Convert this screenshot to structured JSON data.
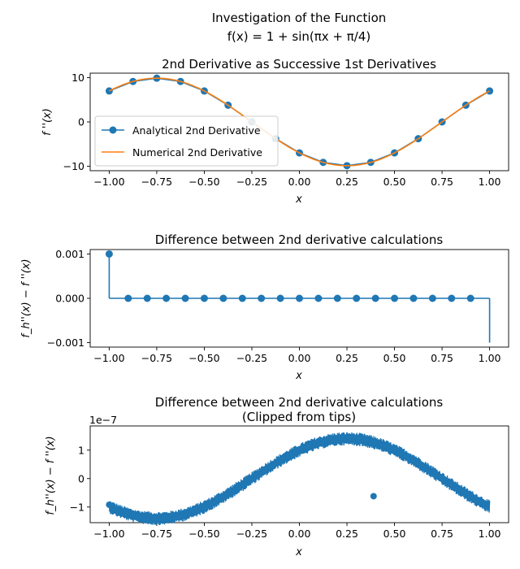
{
  "figure": {
    "suptitle_line1": "Investigation of the Function",
    "suptitle_line2": "f(x) = 1 + sin(πx + π/4)"
  },
  "colors": {
    "blue": "#1f77b4",
    "orange": "#ff7f0e"
  },
  "chart_data": [
    {
      "type": "line",
      "title": "2nd Derivative as Successive 1st Derivatives",
      "xlabel": "x",
      "ylabel": "f ''(x)",
      "xlim": [
        -1.1,
        1.1
      ],
      "ylim": [
        -11,
        11
      ],
      "xticks": [
        -1.0,
        -0.75,
        -0.5,
        -0.25,
        0.0,
        0.25,
        0.5,
        0.75,
        1.0
      ],
      "xtick_labels": [
        "−1.00",
        "−0.75",
        "−0.50",
        "−0.25",
        "0.00",
        "0.25",
        "0.50",
        "0.75",
        "1.00"
      ],
      "yticks": [
        -10,
        0,
        10
      ],
      "ytick_labels": [
        "−10",
        "0",
        "10"
      ],
      "legend_position": "center-left",
      "series": [
        {
          "name": "Analytical 2nd Derivative",
          "style": "line-markers",
          "x": [
            -1.0,
            -0.875,
            -0.75,
            -0.625,
            -0.5,
            -0.375,
            -0.25,
            -0.125,
            0.0,
            0.125,
            0.25,
            0.375,
            0.5,
            0.625,
            0.75,
            0.875,
            1.0
          ],
          "y": [
            6.98,
            9.12,
            9.87,
            9.12,
            6.98,
            3.78,
            0.0,
            -3.78,
            -6.98,
            -9.12,
            -9.87,
            -9.12,
            -6.98,
            -3.78,
            0.0,
            3.78,
            6.98
          ]
        },
        {
          "name": "Numerical 2nd Derivative",
          "style": "line",
          "expression": "-pi^2 * sin(pi*x + pi/4)",
          "x_range": [
            -1.0,
            1.0
          ]
        }
      ]
    },
    {
      "type": "stem",
      "title": "Difference between 2nd derivative calculations",
      "xlabel": "x",
      "ylabel": "f_h''(x) − f ''(x)",
      "xlim": [
        -1.1,
        1.1
      ],
      "ylim": [
        -0.0011,
        0.0011
      ],
      "xticks": [
        -1.0,
        -0.75,
        -0.5,
        -0.25,
        0.0,
        0.25,
        0.5,
        0.75,
        1.0
      ],
      "xtick_labels": [
        "−1.00",
        "−0.75",
        "−0.50",
        "−0.25",
        "0.00",
        "0.25",
        "0.50",
        "0.75",
        "1.00"
      ],
      "yticks": [
        -0.001,
        0.0,
        0.001
      ],
      "ytick_labels": [
        "−0.001",
        "0.000",
        "0.001"
      ],
      "x": [
        -1.0,
        -0.9,
        -0.8,
        -0.7,
        -0.6,
        -0.5,
        -0.4,
        -0.3,
        -0.2,
        -0.1,
        0.0,
        0.1,
        0.2,
        0.3,
        0.4,
        0.5,
        0.6,
        0.7,
        0.8,
        0.9,
        1.0
      ],
      "y": [
        0.001,
        0,
        0,
        0,
        0,
        0,
        0,
        0,
        0,
        0,
        0,
        0,
        0,
        0,
        0,
        0,
        0,
        0,
        0,
        0,
        -0.001
      ],
      "last_point_marker": false
    },
    {
      "type": "scatter",
      "title_line1": "Difference between 2nd derivative calculations",
      "title_line2": "(Clipped from tips)",
      "xlabel": "x",
      "ylabel": "f_h''(x) − f ''(x)",
      "offset_text": "1e−7",
      "xlim": [
        -1.1,
        1.1
      ],
      "ylim": [
        -1.55,
        1.85
      ],
      "xticks": [
        -1.0,
        -0.75,
        -0.5,
        -0.25,
        0.0,
        0.25,
        0.5,
        0.75,
        1.0
      ],
      "xtick_labels": [
        "−1.00",
        "−0.75",
        "−0.50",
        "−0.25",
        "0.00",
        "0.25",
        "0.50",
        "0.75",
        "1.00"
      ],
      "yticks": [
        -1,
        0,
        1
      ],
      "ytick_labels": [
        "−1",
        "0",
        "1"
      ],
      "trend_expression": "1.4 * sin(pi*x + pi/4) (×1e−7)",
      "noise_band_halfwidth": 0.22,
      "x_range": [
        -1.0,
        1.0
      ]
    }
  ]
}
